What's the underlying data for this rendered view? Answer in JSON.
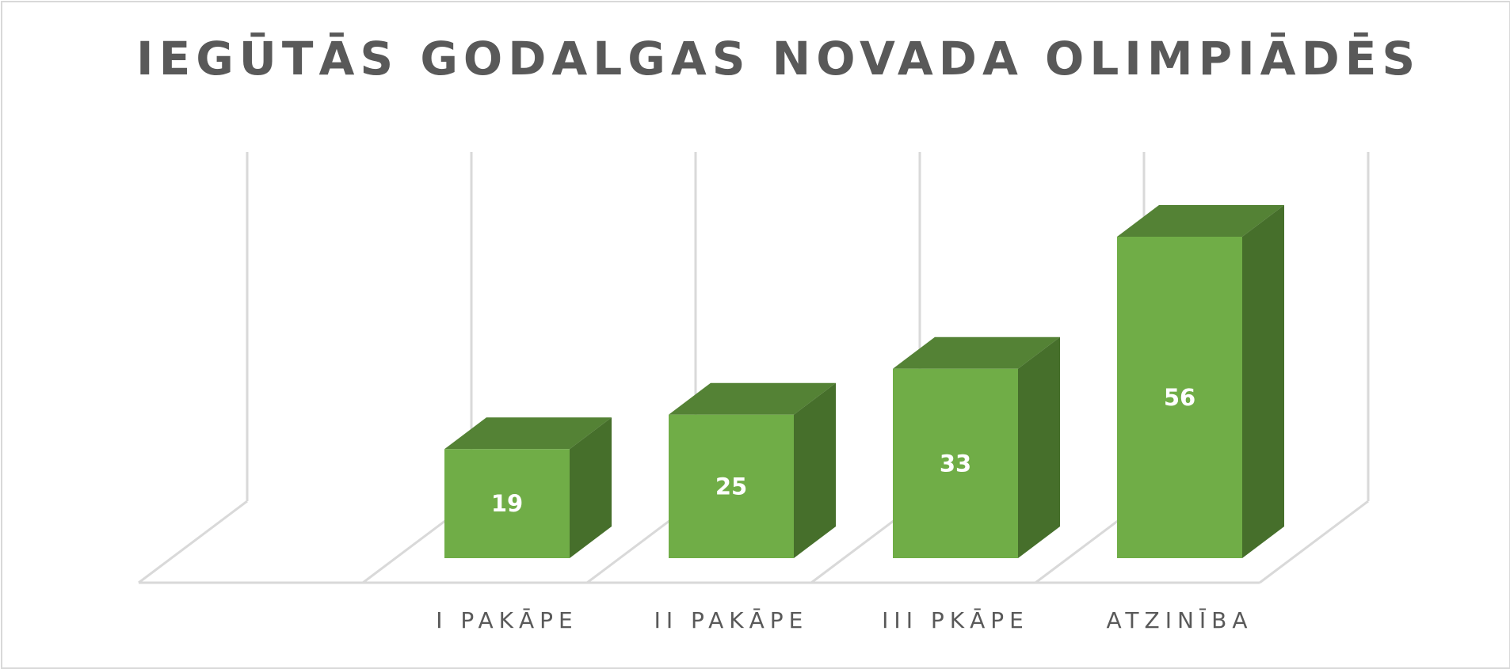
{
  "title": "IEGŪTĀS GODALGAS NOVADA OLIMPIĀDĒS",
  "colors": {
    "bar_front": "#70ad47",
    "bar_top": "#548235",
    "bar_side": "#466f2b",
    "gridline": "#d9d9d9",
    "text": "#595959",
    "data_label": "#ffffff"
  },
  "chart_data": {
    "type": "bar",
    "three_d": true,
    "title": "IEGŪTĀS GODALGAS NOVADA OLIMPIĀDĒS",
    "categories": [
      "I PAKĀPE",
      "II PAKĀPE",
      "III PKĀPE",
      "ATZINĪBA"
    ],
    "values": [
      19,
      25,
      33,
      56
    ],
    "data_labels": [
      "19",
      "25",
      "33",
      "56"
    ],
    "xlabel": "",
    "ylabel": "",
    "ylim": [
      0,
      60
    ],
    "grid": true,
    "legend": "none",
    "leading_empty_slot": true
  }
}
